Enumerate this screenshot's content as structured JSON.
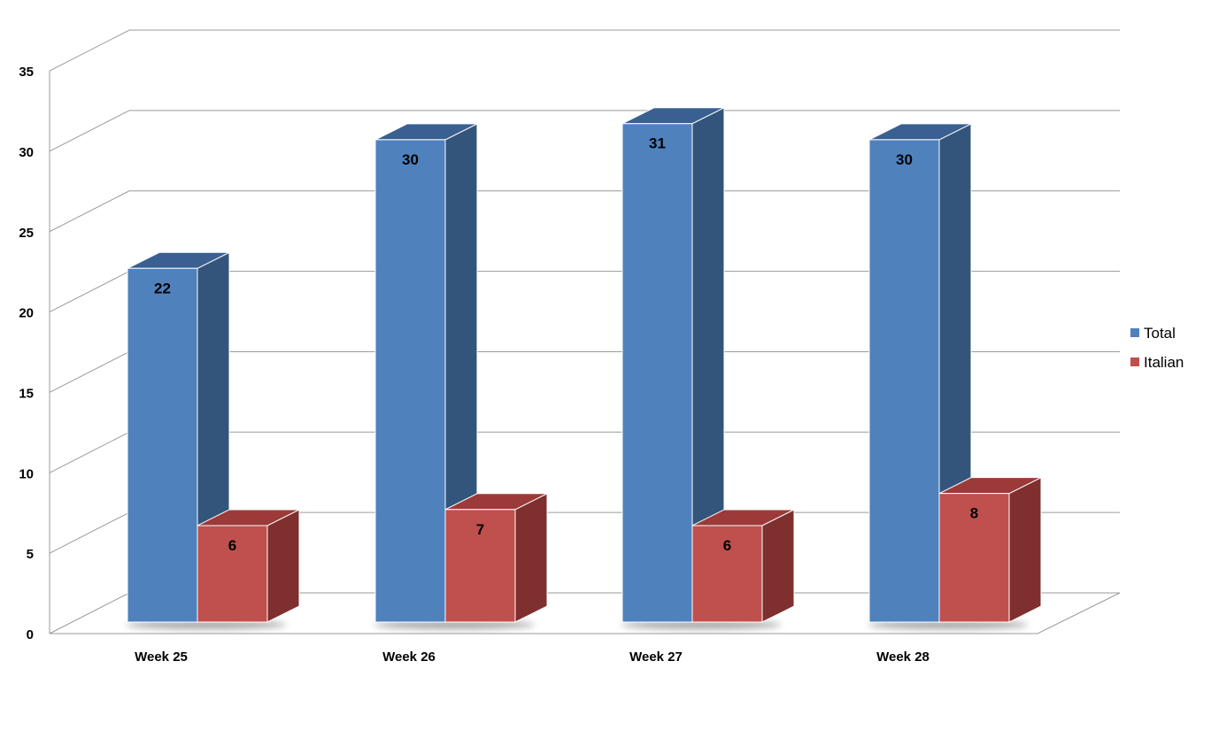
{
  "chart_data": {
    "type": "bar",
    "categories": [
      "Week 25",
      "Week 26",
      "Week 27",
      "Week 28"
    ],
    "series": [
      {
        "name": "Total",
        "values": [
          22,
          30,
          31,
          30
        ],
        "color": "#4F81BD",
        "side_color": "#34557B",
        "top_color": "#3A6091"
      },
      {
        "name": "Italian",
        "values": [
          6,
          7,
          6,
          8
        ],
        "color": "#C0504D",
        "side_color": "#7E2F2E",
        "top_color": "#9B3A38"
      }
    ],
    "ylim": [
      0,
      35
    ],
    "y_ticks": [
      "0",
      "5",
      "10",
      "15",
      "20",
      "25",
      "30",
      "35"
    ],
    "grid": true,
    "legend_position": "right",
    "data_labels": true,
    "style": "3d-clustered-column"
  }
}
